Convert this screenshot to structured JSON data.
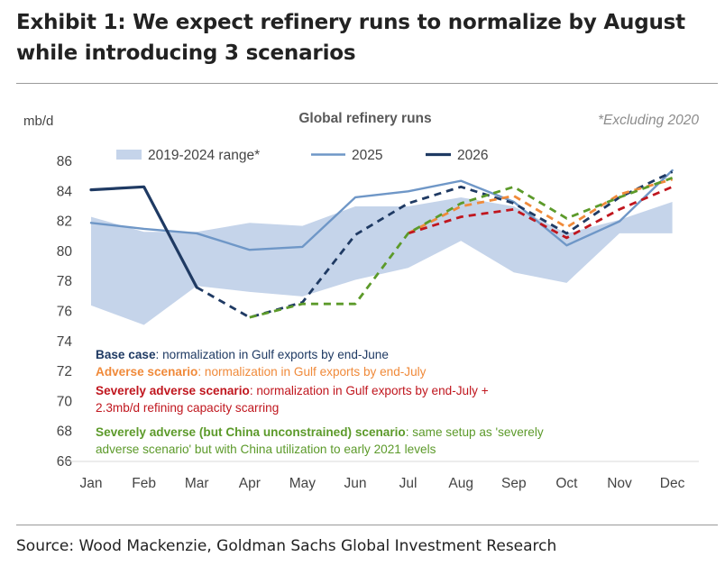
{
  "header": {
    "title_line1": "Exhibit 1: We expect refinery runs to normalize by August",
    "title_line2": "while introducing 3 scenarios"
  },
  "footer": {
    "source": "Source: Wood Mackenzie, Goldman Sachs Global Investment Research"
  },
  "annotations": [
    {
      "key": "base",
      "bold": "Base case",
      "rest": ": normalization in Gulf exports by end-June",
      "color": "#1f3a63"
    },
    {
      "key": "adverse",
      "bold": "Adverse scenario",
      "rest": ": normalization in Gulf exports by end-July",
      "color": "#f08a3a"
    },
    {
      "key": "severe",
      "bold": "Severely adverse scenario",
      "rest": ": normalization in Gulf exports by end-July +",
      "rest2": "2.3mb/d refining capacity scarring",
      "color": "#c0161e"
    },
    {
      "key": "china",
      "bold": "Severely adverse (but China unconstrained) scenario",
      "rest": ": same setup as 'severely",
      "rest2": "adverse scenario' but with China utilization to early 2021 levels",
      "color": "#5c9a2a"
    }
  ],
  "chart_data": {
    "type": "line",
    "title": "Global refinery runs",
    "unit_label": "mb/d",
    "note": "*Excluding 2020",
    "categories": [
      "Jan",
      "Feb",
      "Mar",
      "Apr",
      "May",
      "Jun",
      "Jul",
      "Aug",
      "Sep",
      "Oct",
      "Nov",
      "Dec"
    ],
    "ylim": [
      66,
      86
    ],
    "yticks": [
      66,
      68,
      70,
      72,
      74,
      76,
      78,
      80,
      82,
      84,
      86
    ],
    "grid": false,
    "legend": {
      "placement": "top",
      "entries": [
        {
          "label": "2019-2024 range*",
          "kind": "band",
          "color": "#c5d4ea"
        },
        {
          "label": "2025",
          "kind": "line",
          "color": "#6f97c7"
        },
        {
          "label": "2026",
          "kind": "line",
          "color": "#1f3a63"
        }
      ]
    },
    "range_band": {
      "name": "2019-2024 range*",
      "color": "#c5d4ea",
      "low": [
        76.4,
        75.1,
        77.7,
        77.3,
        77.0,
        78.1,
        78.9,
        80.7,
        78.6,
        77.9,
        81.2,
        81.2
      ],
      "high": [
        82.3,
        81.3,
        81.3,
        81.9,
        81.7,
        83.0,
        83.0,
        83.6,
        83.0,
        81.2,
        82.1,
        83.3
      ]
    },
    "series": [
      {
        "name": "2025",
        "color": "#6f97c7",
        "style": "solid",
        "x": [
          0,
          1,
          2,
          3,
          4,
          5,
          6,
          7,
          8,
          9,
          10,
          11
        ],
        "values": [
          81.9,
          81.5,
          81.2,
          80.1,
          80.3,
          83.6,
          84.0,
          84.7,
          83.3,
          80.4,
          82.0,
          85.4
        ]
      },
      {
        "name": "2026",
        "color": "#1f3a63",
        "style": "solid",
        "x": [
          0,
          1,
          2
        ],
        "values": [
          84.1,
          84.3,
          77.6
        ]
      },
      {
        "name": "Base case",
        "color": "#1f3a63",
        "style": "dashed",
        "x": [
          2,
          3,
          4,
          5,
          6,
          7,
          8,
          9,
          10,
          11
        ],
        "values": [
          77.6,
          75.6,
          76.6,
          81.1,
          83.2,
          84.3,
          83.2,
          81.2,
          83.6,
          85.3
        ]
      },
      {
        "name": "Adverse scenario",
        "color": "#f08a3a",
        "style": "dashed",
        "x": [
          6,
          7,
          8,
          9,
          10,
          11
        ],
        "values": [
          81.2,
          83.0,
          83.7,
          81.6,
          83.8,
          84.8
        ]
      },
      {
        "name": "Severely adverse scenario",
        "color": "#c0161e",
        "style": "dashed",
        "x": [
          6,
          7,
          8,
          9,
          10,
          11
        ],
        "values": [
          81.2,
          82.3,
          82.8,
          80.9,
          82.8,
          84.3
        ]
      },
      {
        "name": "Severely adverse (but China unconstrained) scenario",
        "color": "#5c9a2a",
        "style": "dashed",
        "x": [
          3,
          4,
          5,
          6,
          7,
          8,
          9,
          10,
          11
        ],
        "values": [
          75.6,
          76.5,
          76.5,
          81.2,
          83.2,
          84.3,
          82.2,
          83.6,
          84.9
        ]
      }
    ]
  }
}
